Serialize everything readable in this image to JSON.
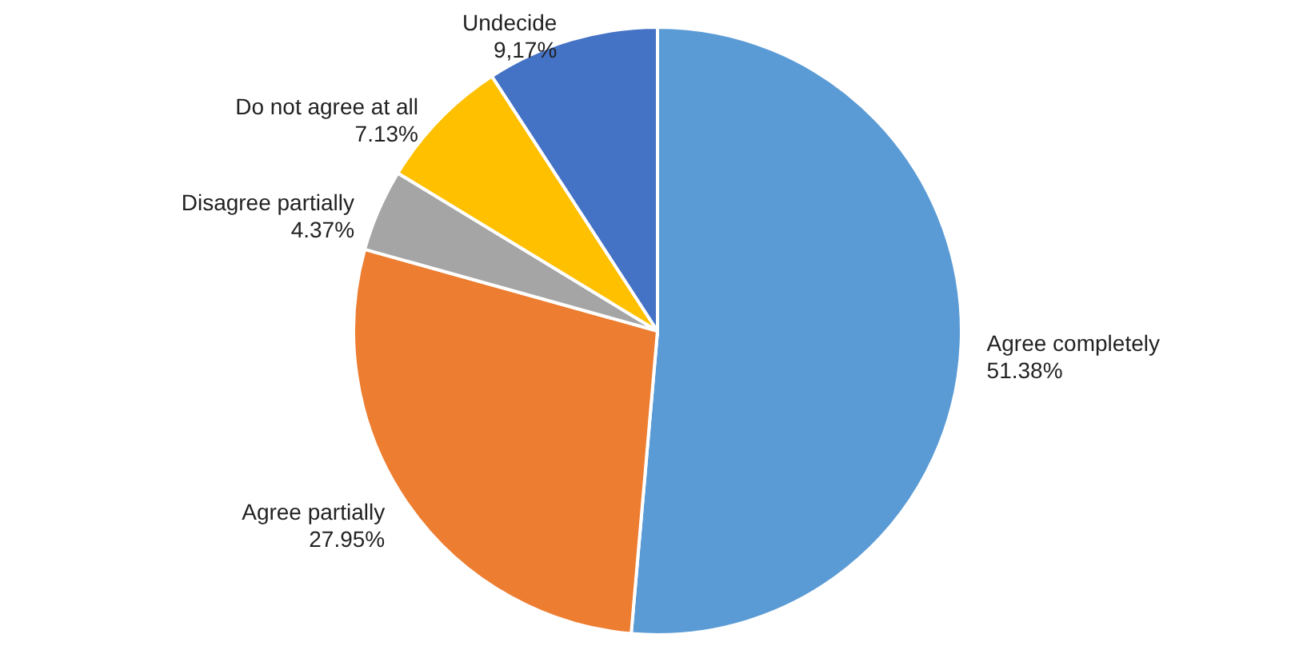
{
  "chart_data": {
    "type": "pie",
    "categories": [
      "Agree completely",
      "Agree partially",
      "Disagree partially",
      "Do not agree at all",
      "Undecide"
    ],
    "values": [
      51.38,
      27.95,
      4.37,
      7.13,
      9.17
    ],
    "value_labels": [
      "51.38%",
      "27.95%",
      "4.37%",
      "7.13%",
      "9,17%"
    ],
    "colors": [
      "#5b9bd5",
      "#ed7d31",
      "#a5a5a5",
      "#ffc000",
      "#4472c4"
    ]
  }
}
